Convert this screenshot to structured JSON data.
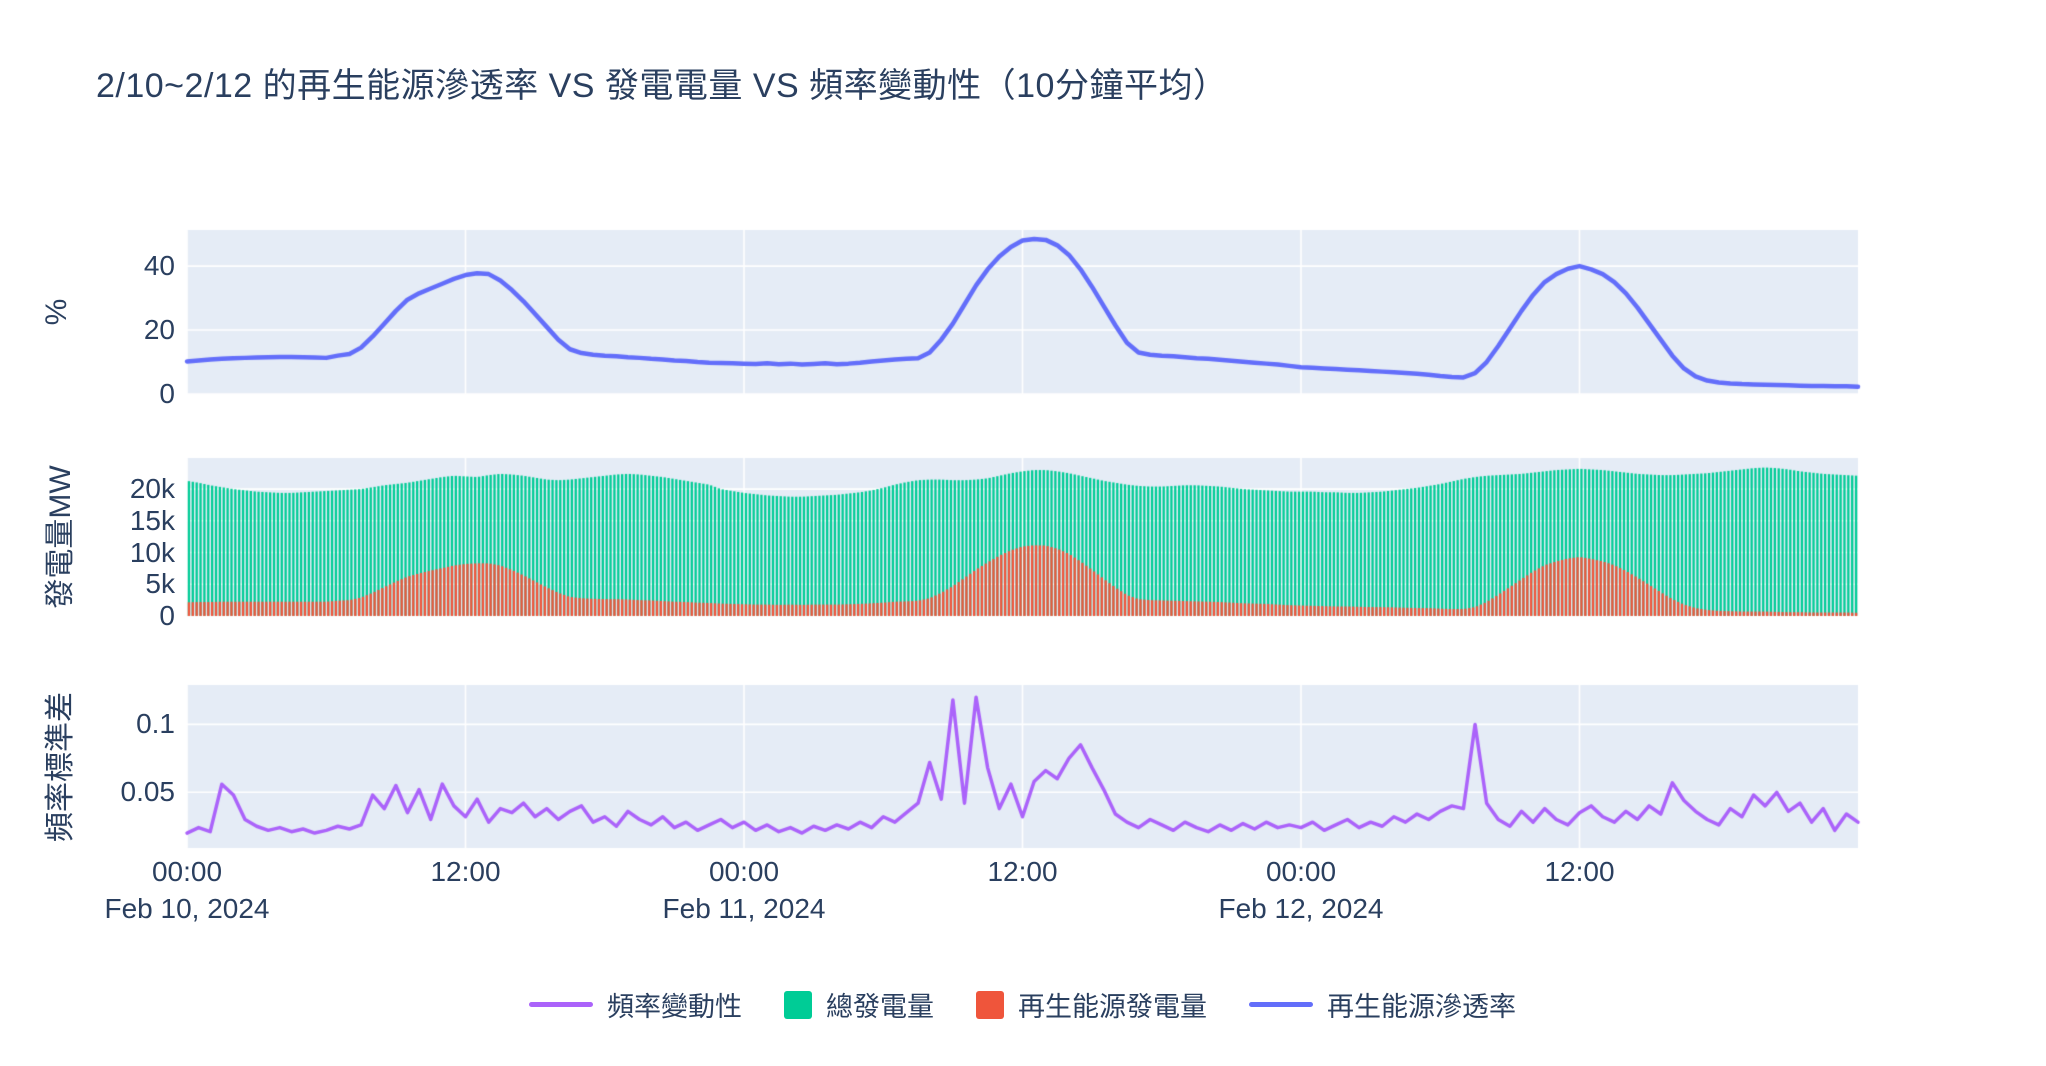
{
  "title": "2/10~2/12 的再生能源滲透率 VS 發電電量 VS 頻率變動性（10分鐘平均）",
  "colors": {
    "font": "#2a3f5f",
    "plot_background": "#e5ecf6",
    "grid": "#ffffff",
    "penetration_line": "#636efa",
    "total_generation_bar": "#00cc96",
    "renewable_generation_bar": "#ef553b",
    "frequency_line": "#ab63fa"
  },
  "legend": [
    {
      "label": "頻率變動性",
      "swatch": "line",
      "color": "#ab63fa"
    },
    {
      "label": "總發電量",
      "swatch": "square",
      "color": "#00cc96"
    },
    {
      "label": "再生能源發電量",
      "swatch": "square",
      "color": "#ef553b"
    },
    {
      "label": "再生能源滲透率",
      "swatch": "line",
      "color": "#636efa"
    }
  ],
  "x_axis": {
    "start": "Feb 10, 2024 00:00",
    "step_minutes": 30,
    "n_points": 145,
    "ticks": [
      {
        "t": 0,
        "time": "00:00",
        "date": "Feb 10, 2024"
      },
      {
        "t": 24,
        "time": "12:00",
        "date": ""
      },
      {
        "t": 48,
        "time": "00:00",
        "date": "Feb 11, 2024"
      },
      {
        "t": 72,
        "time": "12:00",
        "date": ""
      },
      {
        "t": 96,
        "time": "00:00",
        "date": "Feb 12, 2024"
      },
      {
        "t": 120,
        "time": "12:00",
        "date": ""
      }
    ]
  },
  "chart_data": [
    {
      "type": "line",
      "panel": "top",
      "ylabel": "%",
      "ylim": [
        0,
        51.3
      ],
      "yticks": [
        {
          "v": 0,
          "label": "0"
        },
        {
          "v": 20,
          "label": "20"
        },
        {
          "v": 40,
          "label": "40"
        }
      ],
      "series": [
        {
          "name": "再生能源滲透率",
          "color": "#636efa",
          "values": [
            10.2,
            10.5,
            10.8,
            11.0,
            11.2,
            11.3,
            11.4,
            11.5,
            11.6,
            11.6,
            11.5,
            11.4,
            11.3,
            12.0,
            12.5,
            14.5,
            18.0,
            22.0,
            26.0,
            29.5,
            31.5,
            33.0,
            34.5,
            36.0,
            37.2,
            37.8,
            37.5,
            35.5,
            32.5,
            29.0,
            25.0,
            21.0,
            17.0,
            14.0,
            12.8,
            12.3,
            12.0,
            11.8,
            11.5,
            11.3,
            11.0,
            10.8,
            10.5,
            10.3,
            10.0,
            9.8,
            9.7,
            9.6,
            9.5,
            9.4,
            9.6,
            9.3,
            9.5,
            9.2,
            9.4,
            9.6,
            9.3,
            9.5,
            9.8,
            10.2,
            10.5,
            10.8,
            11.0,
            11.2,
            13.0,
            17.0,
            22.0,
            28.0,
            34.0,
            39.0,
            43.0,
            46.0,
            48.0,
            48.5,
            48.2,
            46.5,
            43.5,
            39.0,
            33.5,
            27.5,
            21.5,
            16.0,
            13.0,
            12.3,
            12.0,
            11.8,
            11.5,
            11.2,
            11.0,
            10.7,
            10.4,
            10.1,
            9.8,
            9.5,
            9.2,
            8.8,
            8.4,
            8.2,
            8.0,
            7.8,
            7.6,
            7.4,
            7.2,
            7.0,
            6.8,
            6.6,
            6.3,
            6.0,
            5.6,
            5.3,
            5.2,
            6.5,
            10.0,
            15.0,
            20.5,
            26.0,
            31.0,
            35.0,
            37.5,
            39.2,
            40.0,
            39.0,
            37.5,
            35.0,
            31.5,
            27.0,
            22.0,
            17.0,
            12.0,
            8.0,
            5.5,
            4.2,
            3.6,
            3.3,
            3.1,
            3.0,
            2.9,
            2.8,
            2.7,
            2.6,
            2.5,
            2.5,
            2.4,
            2.4,
            2.3
          ]
        }
      ]
    },
    {
      "type": "bar",
      "panel": "middle",
      "ylabel": "發電量MW",
      "ylim": [
        0,
        24900
      ],
      "yticks": [
        {
          "v": 0,
          "label": "0"
        },
        {
          "v": 5000,
          "label": "5k"
        },
        {
          "v": 10000,
          "label": "10k"
        },
        {
          "v": 15000,
          "label": "15k"
        },
        {
          "v": 20000,
          "label": "20k"
        }
      ],
      "series": [
        {
          "name": "總發電量",
          "color": "#00cc96",
          "values": [
            21300,
            21000,
            20600,
            20300,
            20000,
            19800,
            19600,
            19500,
            19400,
            19400,
            19500,
            19600,
            19700,
            19800,
            19900,
            20000,
            20300,
            20600,
            20800,
            21000,
            21300,
            21600,
            21900,
            22100,
            22000,
            21900,
            22200,
            22400,
            22300,
            22100,
            21800,
            21500,
            21400,
            21500,
            21700,
            21900,
            22100,
            22300,
            22400,
            22300,
            22100,
            21900,
            21600,
            21300,
            21000,
            20700,
            20000,
            19700,
            19400,
            19200,
            19000,
            18900,
            18800,
            18800,
            18900,
            19000,
            19100,
            19300,
            19500,
            19800,
            20200,
            20700,
            21100,
            21400,
            21500,
            21500,
            21400,
            21400,
            21500,
            21700,
            22100,
            22500,
            22800,
            23000,
            23000,
            22800,
            22500,
            22100,
            21700,
            21300,
            21000,
            20700,
            20500,
            20400,
            20400,
            20500,
            20600,
            20600,
            20500,
            20400,
            20200,
            20000,
            19900,
            19800,
            19700,
            19600,
            19600,
            19600,
            19500,
            19500,
            19400,
            19400,
            19500,
            19600,
            19800,
            20000,
            20200,
            20500,
            20800,
            21200,
            21600,
            21900,
            22100,
            22200,
            22300,
            22400,
            22600,
            22800,
            23000,
            23100,
            23200,
            23100,
            23000,
            22800,
            22600,
            22400,
            22300,
            22200,
            22200,
            22300,
            22400,
            22500,
            22700,
            22900,
            23100,
            23300,
            23400,
            23300,
            23100,
            22800,
            22600,
            22400,
            22300,
            22200,
            22100
          ]
        },
        {
          "name": "再生能源發電量",
          "color": "#ef553b",
          "values": [
            2150,
            2200,
            2200,
            2250,
            2250,
            2250,
            2250,
            2250,
            2250,
            2250,
            2250,
            2250,
            2250,
            2400,
            2500,
            2900,
            3650,
            4550,
            5400,
            6200,
            6700,
            7150,
            7550,
            7950,
            8200,
            8300,
            8300,
            7950,
            7250,
            6400,
            5450,
            4500,
            3650,
            3000,
            2800,
            2700,
            2650,
            2650,
            2600,
            2500,
            2450,
            2350,
            2250,
            2200,
            2100,
            2050,
            1950,
            1900,
            1850,
            1800,
            1800,
            1750,
            1800,
            1750,
            1800,
            1800,
            1800,
            1850,
            1900,
            2000,
            2100,
            2250,
            2300,
            2400,
            2800,
            3650,
            4700,
            6000,
            7300,
            8450,
            9500,
            10350,
            10950,
            11150,
            11100,
            10600,
            9800,
            8600,
            7250,
            5850,
            4500,
            3300,
            2650,
            2500,
            2450,
            2400,
            2350,
            2300,
            2250,
            2200,
            2100,
            2000,
            1950,
            1900,
            1800,
            1700,
            1650,
            1600,
            1550,
            1500,
            1500,
            1450,
            1400,
            1400,
            1350,
            1300,
            1250,
            1250,
            1150,
            1100,
            1100,
            1400,
            2200,
            3350,
            4550,
            5800,
            7000,
            8000,
            8600,
            9050,
            9300,
            9000,
            8600,
            8000,
            7100,
            6050,
            4900,
            3750,
            2650,
            1800,
            1250,
            950,
            800,
            750,
            700,
            700,
            700,
            650,
            600,
            600,
            550,
            550,
            550,
            550,
            500
          ]
        }
      ]
    },
    {
      "type": "line",
      "panel": "bottom",
      "ylabel": "頻率標準差",
      "ylim": [
        0.009,
        0.129
      ],
      "yticks": [
        {
          "v": 0.05,
          "label": "0.05"
        },
        {
          "v": 0.1,
          "label": "0.1"
        }
      ],
      "series": [
        {
          "name": "頻率變動性",
          "color": "#ab63fa",
          "values": [
            0.02,
            0.024,
            0.021,
            0.056,
            0.048,
            0.03,
            0.025,
            0.022,
            0.024,
            0.021,
            0.023,
            0.02,
            0.022,
            0.025,
            0.023,
            0.026,
            0.048,
            0.038,
            0.055,
            0.035,
            0.052,
            0.03,
            0.056,
            0.04,
            0.032,
            0.045,
            0.028,
            0.038,
            0.035,
            0.042,
            0.032,
            0.038,
            0.03,
            0.036,
            0.04,
            0.028,
            0.032,
            0.025,
            0.036,
            0.03,
            0.026,
            0.032,
            0.024,
            0.028,
            0.022,
            0.026,
            0.03,
            0.024,
            0.028,
            0.022,
            0.026,
            0.021,
            0.024,
            0.02,
            0.025,
            0.022,
            0.026,
            0.023,
            0.028,
            0.024,
            0.032,
            0.028,
            0.035,
            0.042,
            0.072,
            0.045,
            0.118,
            0.042,
            0.12,
            0.068,
            0.038,
            0.056,
            0.032,
            0.058,
            0.066,
            0.06,
            0.075,
            0.085,
            0.068,
            0.052,
            0.034,
            0.028,
            0.024,
            0.03,
            0.026,
            0.022,
            0.028,
            0.024,
            0.021,
            0.026,
            0.022,
            0.027,
            0.023,
            0.028,
            0.024,
            0.026,
            0.024,
            0.028,
            0.022,
            0.026,
            0.03,
            0.024,
            0.028,
            0.025,
            0.032,
            0.028,
            0.034,
            0.03,
            0.036,
            0.04,
            0.038,
            0.1,
            0.042,
            0.03,
            0.025,
            0.036,
            0.028,
            0.038,
            0.03,
            0.026,
            0.035,
            0.04,
            0.032,
            0.028,
            0.036,
            0.03,
            0.04,
            0.034,
            0.057,
            0.044,
            0.036,
            0.03,
            0.026,
            0.038,
            0.032,
            0.048,
            0.04,
            0.05,
            0.036,
            0.042,
            0.028,
            0.038,
            0.022,
            0.034,
            0.028
          ]
        }
      ]
    }
  ]
}
